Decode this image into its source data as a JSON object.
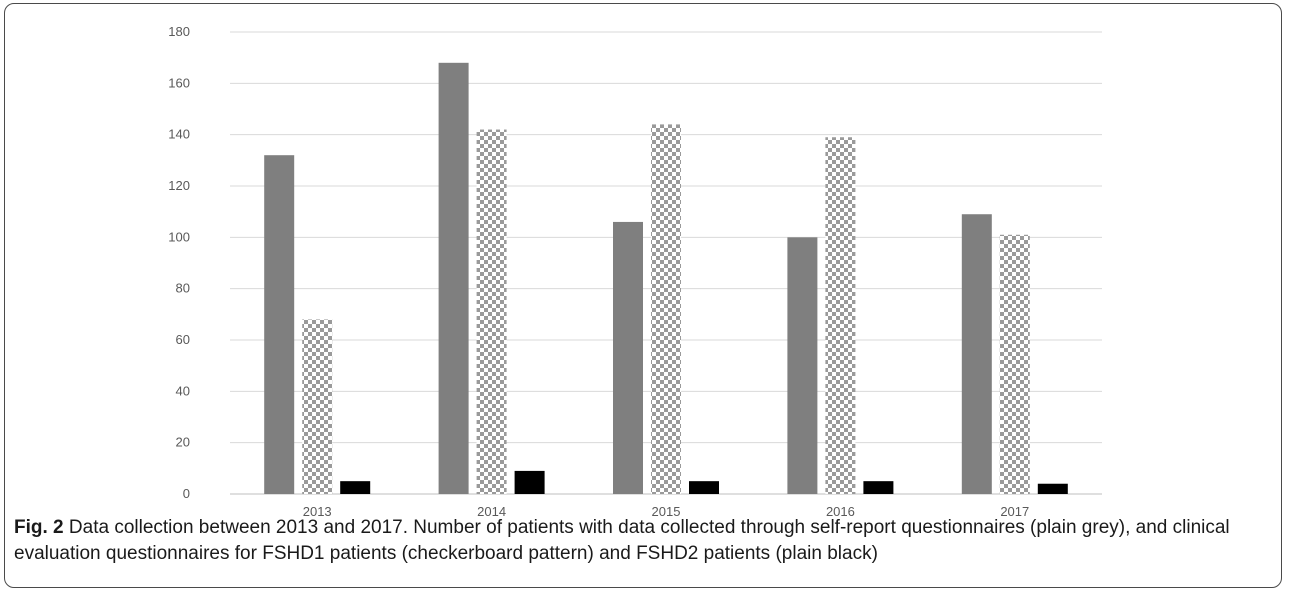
{
  "chart_data": {
    "type": "bar",
    "categories": [
      "2013",
      "2014",
      "2015",
      "2016",
      "2017"
    ],
    "series": [
      {
        "values": [
          132,
          168,
          106,
          100,
          109
        ],
        "color": "#7f7f7f",
        "pattern": "solid"
      },
      {
        "values": [
          68,
          142,
          144,
          139,
          101
        ],
        "color": "#9a9a9a",
        "pattern": "checkerboard"
      },
      {
        "values": [
          5,
          9,
          5,
          5,
          4
        ],
        "color": "#000000",
        "pattern": "solid"
      }
    ],
    "ylim": [
      0,
      180
    ],
    "yticks": [
      "0",
      "20",
      "40",
      "60",
      "80",
      "100",
      "120",
      "140",
      "160",
      "180"
    ],
    "grid": true,
    "legend": "none"
  },
  "caption": {
    "label": "Fig. 2",
    "text": " Data collection between 2013 and 2017. Number of patients with data collected through self-report questionnaires (plain grey), and clinical evaluation questionnaires for FSHD1 patients (checkerboard pattern) and FSHD2 patients (plain black)"
  }
}
